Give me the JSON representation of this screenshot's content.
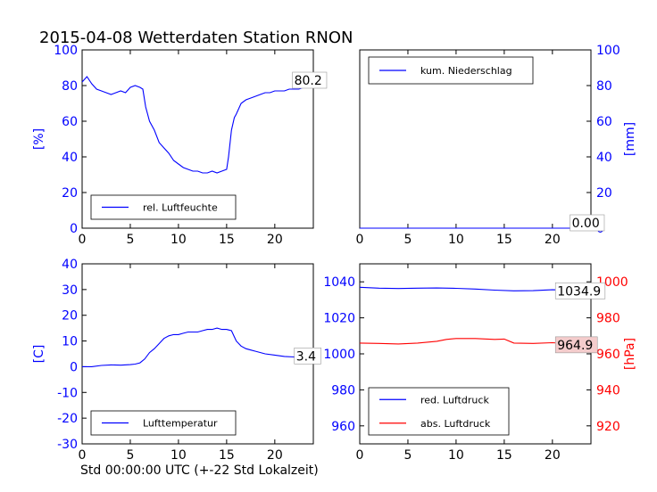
{
  "title": "2015-04-08 Wetterdaten Station RNON",
  "footer_xlabel": "Std 00:00:00 UTC (+-22 Std Lokalzeit)",
  "colors": {
    "blue": "#0000ff",
    "red": "#ff0000",
    "axis": "#000000",
    "highlight": "#f4cccc"
  },
  "chart_data": [
    {
      "id": "humidity",
      "type": "line",
      "ylabel": "[%]",
      "xlim": [
        0,
        24
      ],
      "ylim": [
        0,
        100
      ],
      "x_ticks": [
        0,
        5,
        10,
        15,
        20
      ],
      "y_ticks": [
        0,
        20,
        40,
        60,
        80,
        100
      ],
      "y_axis_side": "left",
      "legend_placement": "lower-left",
      "series": [
        {
          "name": "rel. Luftfeuchte",
          "color": "#0000ff",
          "x": [
            0,
            0.5,
            1,
            1.5,
            2,
            2.5,
            3,
            3.5,
            4,
            4.5,
            5,
            5.5,
            6,
            6.3,
            6.6,
            7,
            7.5,
            8,
            8.5,
            9,
            9.5,
            10,
            10.5,
            11,
            11.5,
            12,
            12.5,
            13,
            13.5,
            14,
            14.5,
            15,
            15.2,
            15.5,
            15.8,
            16,
            16.5,
            17,
            17.5,
            18,
            18.5,
            19,
            19.5,
            20,
            20.5,
            21,
            21.5,
            22,
            22.5,
            23,
            23.5,
            24
          ],
          "y": [
            82,
            85,
            81,
            78,
            77,
            76,
            75,
            76,
            77,
            76,
            79,
            80,
            79,
            78,
            68,
            60,
            55,
            48,
            45,
            42,
            38,
            36,
            34,
            33,
            32,
            32,
            31,
            31,
            32,
            31,
            32,
            33,
            40,
            55,
            62,
            64,
            70,
            72,
            73,
            74,
            75,
            76,
            76,
            77,
            77,
            77,
            78,
            78,
            78,
            79,
            80,
            80.2
          ]
        }
      ],
      "annotations": [
        {
          "text": "80.2",
          "x": 22.2,
          "y": 83
        }
      ]
    },
    {
      "id": "precip",
      "type": "line",
      "ylabel": "[mm]",
      "xlim": [
        0,
        24
      ],
      "ylim": [
        0,
        100
      ],
      "x_ticks": [
        0,
        5,
        10,
        15,
        20
      ],
      "y_ticks": [
        0,
        20,
        40,
        60,
        80,
        100
      ],
      "y_axis_side": "right",
      "legend_placement": "top-left",
      "series": [
        {
          "name": "kum. Niederschlag",
          "color": "#0000ff",
          "x": [
            0,
            24
          ],
          "y": [
            0,
            0
          ]
        }
      ],
      "annotations": [
        {
          "text": "0.00",
          "x": 22.2,
          "y": 3
        }
      ]
    },
    {
      "id": "temperature",
      "type": "line",
      "ylabel": "[C]",
      "xlim": [
        0,
        24
      ],
      "ylim": [
        -30,
        40
      ],
      "x_ticks": [
        0,
        5,
        10,
        15,
        20
      ],
      "y_ticks": [
        -30,
        -20,
        -10,
        0,
        10,
        20,
        30,
        40
      ],
      "y_axis_side": "left",
      "legend_placement": "lower-left",
      "series": [
        {
          "name": "Lufttemperatur",
          "color": "#0000ff",
          "x": [
            0,
            1,
            2,
            3,
            4,
            5,
            5.5,
            6,
            6.5,
            7,
            7.5,
            8,
            8.5,
            9,
            9.5,
            10,
            10.5,
            11,
            11.5,
            12,
            12.5,
            13,
            13.5,
            14,
            14.5,
            15,
            15.5,
            16,
            16.5,
            17,
            17.5,
            18,
            19,
            20,
            21,
            22,
            23,
            24
          ],
          "y": [
            0,
            0,
            0.5,
            0.7,
            0.6,
            0.8,
            1,
            1.5,
            3,
            5.5,
            7,
            9,
            11,
            12,
            12.5,
            12.5,
            13,
            13.5,
            13.5,
            13.5,
            14,
            14.5,
            14.5,
            15,
            14.5,
            14.5,
            14,
            10,
            8,
            7,
            6.5,
            6,
            5,
            4.5,
            4,
            3.8,
            3.5,
            3.4
          ]
        }
      ],
      "annotations": [
        {
          "text": "3.4",
          "x": 22.4,
          "y": 4.2
        }
      ]
    },
    {
      "id": "pressure",
      "type": "line",
      "ylabel": "[hPa]",
      "xlim": [
        0,
        24
      ],
      "ylim_left": [
        950,
        1050
      ],
      "y_ticks_left": [
        960,
        980,
        1000,
        1020,
        1040
      ],
      "ylim_right": [
        910,
        1010
      ],
      "y_ticks_right": [
        920,
        940,
        960,
        980,
        1000
      ],
      "x_ticks": [
        0,
        5,
        10,
        15,
        20
      ],
      "legend_placement": "lower-left",
      "series": [
        {
          "name": "red. Luftdruck",
          "color": "#0000ff",
          "axis": "left",
          "x": [
            0,
            2,
            4,
            6,
            8,
            10,
            12,
            14,
            16,
            18,
            20,
            22,
            24
          ],
          "y": [
            1037,
            1036.5,
            1036.3,
            1036.5,
            1036.6,
            1036.4,
            1036,
            1035.4,
            1035,
            1035.1,
            1035.6,
            1035.3,
            1034.9
          ]
        },
        {
          "name": "abs. Luftdruck",
          "color": "#ff0000",
          "axis": "right",
          "x": [
            0,
            2,
            4,
            6,
            8,
            9,
            10,
            12,
            14,
            15,
            16,
            18,
            20,
            22,
            24
          ],
          "y": [
            966,
            965.8,
            965.5,
            966,
            967,
            968,
            968.5,
            968.5,
            968,
            968.2,
            966,
            965.8,
            966.2,
            965.5,
            964.9
          ]
        }
      ],
      "annotations": [
        {
          "text": "1034.9",
          "x": 20.5,
          "axis": "left",
          "y": 1037,
          "series": 0
        },
        {
          "text": "964.9",
          "x": 20.5,
          "axis": "right",
          "y": 967,
          "series": 1
        }
      ]
    }
  ]
}
